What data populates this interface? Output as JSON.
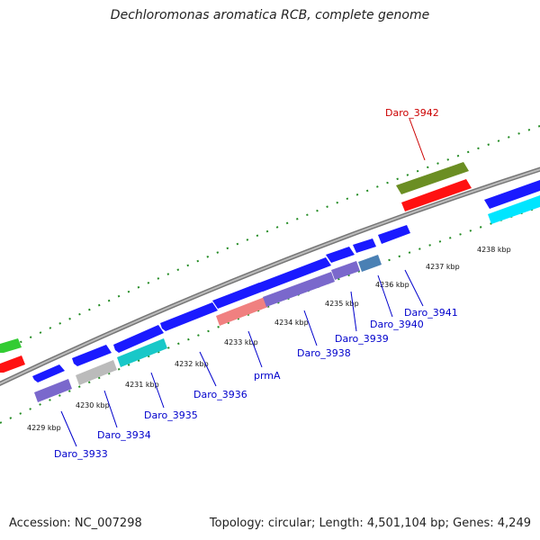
{
  "title": "Dechloromonas aromatica RCB, complete genome",
  "footer": {
    "accession": "Accession: NC_007298",
    "summary": "Topology: circular; Length: 4,501,104 bp; Genes: 4,249"
  },
  "colors": {
    "backbone": "#888888",
    "tick": "#228B22",
    "label_link": "#0000cc",
    "label_highlight": "#cc0000"
  },
  "ticks": [
    "4229 kbp",
    "4230 kbp",
    "4231 kbp",
    "4232 kbp",
    "4233 kbp",
    "4234 kbp",
    "4235 kbp",
    "4236 kbp",
    "4237 kbp",
    "4238 kbp"
  ],
  "gene_labels": [
    "Daro_3933",
    "Daro_3934",
    "Daro_3935",
    "Daro_3936",
    "prmA",
    "Daro_3938",
    "Daro_3939",
    "Daro_3940",
    "Daro_3941",
    "Daro_3942"
  ]
}
